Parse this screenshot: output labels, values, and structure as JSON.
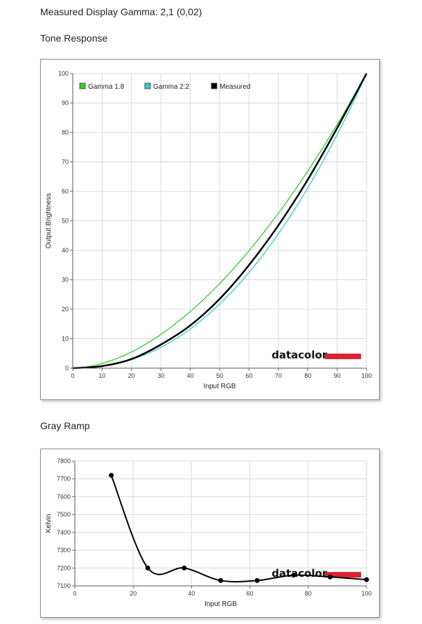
{
  "headings": {
    "gamma": "Measured Display Gamma: 2,1 (0,02)",
    "tone": "Tone Response",
    "gray": "Gray Ramp"
  },
  "logo": {
    "text": "datacolor",
    "bar_color": "#d9242f"
  },
  "chart_data": [
    {
      "id": "tone-response",
      "type": "line",
      "xlabel": "Input RGB",
      "ylabel": "Output Brightness",
      "xlim": [
        0,
        100
      ],
      "ylim": [
        0,
        100
      ],
      "x_ticks": [
        0,
        10,
        20,
        30,
        40,
        50,
        60,
        70,
        80,
        90,
        100
      ],
      "y_ticks": [
        0,
        10,
        20,
        30,
        40,
        50,
        60,
        70,
        80,
        90,
        100
      ],
      "grid": true,
      "legend_position": "top-left",
      "series": [
        {
          "name": "Gamma 1.8",
          "color": "#33cc33",
          "gamma": 1.8
        },
        {
          "name": "Gamma 2.2",
          "color": "#33cccc",
          "gamma": 2.2
        },
        {
          "name": "Measured",
          "color": "#000000",
          "points": [
            [
              0,
              0
            ],
            [
              10,
              0.7
            ],
            [
              20,
              3.1
            ],
            [
              30,
              8
            ],
            [
              40,
              14.5
            ],
            [
              50,
              23.5
            ],
            [
              60,
              35
            ],
            [
              70,
              48.5
            ],
            [
              80,
              64
            ],
            [
              90,
              81.5
            ],
            [
              100,
              100
            ]
          ]
        }
      ]
    },
    {
      "id": "gray-ramp",
      "type": "line",
      "xlabel": "Input RGB",
      "ylabel": "Kelvin",
      "xlim": [
        0,
        100
      ],
      "ylim": [
        7100,
        7800
      ],
      "x_ticks": [
        0,
        20,
        40,
        60,
        80,
        100
      ],
      "y_ticks": [
        7100,
        7200,
        7300,
        7400,
        7500,
        7600,
        7700,
        7800
      ],
      "grid": true,
      "series": [
        {
          "name": "",
          "color": "#000000",
          "points": [
            [
              12.5,
              7720
            ],
            [
              25,
              7200
            ],
            [
              37.5,
              7200
            ],
            [
              50,
              7130
            ],
            [
              62.5,
              7130
            ],
            [
              75,
              7160
            ],
            [
              87.5,
              7150
            ],
            [
              100,
              7135
            ]
          ]
        }
      ]
    }
  ]
}
